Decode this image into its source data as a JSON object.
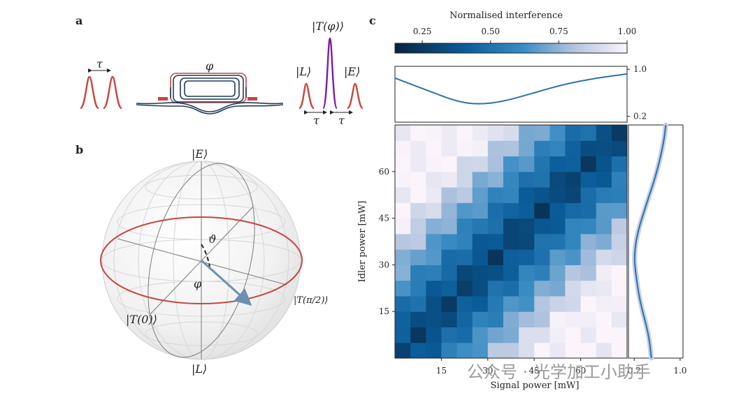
{
  "panels": {
    "a": {
      "label": "a",
      "tau_label": "τ",
      "phi_label": "φ",
      "ket_T": "|T(φ)⟩",
      "ket_L": "|L⟩",
      "ket_E": "|E⟩",
      "tau_left": "τ",
      "tau_right": "τ"
    },
    "b": {
      "label": "b",
      "ket_E": "|E⟩",
      "ket_L": "|L⟩",
      "ket_T0": "|T(0)⟩",
      "ket_Tpi2": "|T(π/2)⟩",
      "theta": "ϑ",
      "phi": "φ"
    },
    "c": {
      "label": "c"
    }
  },
  "colors": {
    "red": "#c8453f",
    "purple": "#7b1fa2",
    "navy": "#1f3a5a",
    "blue_line": "#2b72a8",
    "arrow": "#6d8fb0"
  },
  "watermark": "公众号 · 光学加工小助手",
  "chart_data": [
    {
      "type": "heatmap",
      "title": "",
      "colorbar": {
        "label": "Normalised interference",
        "range": [
          0.15,
          1.0
        ],
        "ticks": [
          "0.25",
          "0.50",
          "0.75",
          "1.00"
        ],
        "tick_values": [
          0.25,
          0.5,
          0.75,
          1.0
        ]
      },
      "xlabel": "Signal power [mW]",
      "ylabel": "Idler power [mW]",
      "xlim": [
        0,
        75
      ],
      "ylim": [
        0,
        75
      ],
      "xticks": [
        "15",
        "30",
        "45",
        "60"
      ],
      "xtick_values": [
        15,
        30,
        45,
        60
      ],
      "yticks": [
        "15",
        "30",
        "45",
        "60"
      ],
      "ytick_values": [
        15,
        30,
        45,
        60
      ],
      "grid_size": 15
    },
    {
      "type": "line",
      "name": "top-marginal",
      "x_range": [
        0,
        75
      ],
      "ylim": [
        0.1,
        1.05
      ],
      "yticks": [
        "0.2",
        "1.0"
      ],
      "ytick_values": [
        0.2,
        1.0
      ],
      "x": [
        0,
        10,
        20,
        27,
        35,
        45,
        55,
        65,
        75
      ],
      "y": [
        0.85,
        0.65,
        0.45,
        0.4,
        0.45,
        0.6,
        0.75,
        0.85,
        0.92
      ]
    },
    {
      "type": "line",
      "name": "right-marginal",
      "xlim": [
        0.1,
        1.05
      ],
      "xticks": [
        "0.2",
        "1.0"
      ],
      "xtick_values": [
        0.2,
        1.0
      ],
      "y": [
        0,
        8,
        18,
        28,
        33,
        40,
        50,
        60,
        70,
        75
      ],
      "x": [
        0.5,
        0.45,
        0.3,
        0.22,
        0.2,
        0.25,
        0.42,
        0.6,
        0.72,
        0.75
      ]
    }
  ]
}
